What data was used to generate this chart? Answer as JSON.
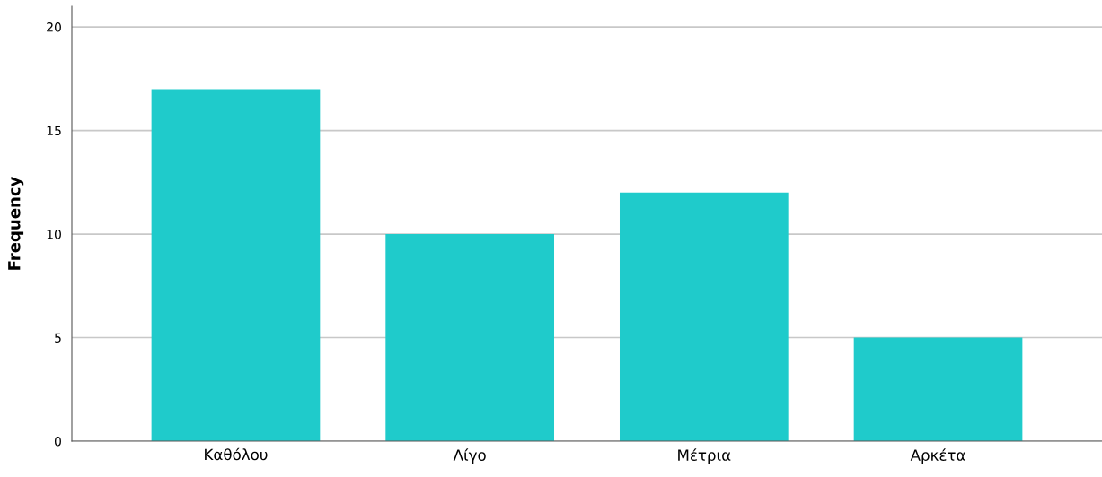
{
  "chart_data": {
    "type": "bar",
    "ylabel": "Frequency",
    "categories": [
      "Καθόλου",
      "Λίγο",
      "Μέτρια",
      "Αρκέτα"
    ],
    "values": [
      17,
      10,
      12,
      5
    ],
    "color": "#1fcbcb",
    "ylim": [
      0,
      21
    ],
    "yticks": [
      0,
      5,
      10,
      15,
      20
    ],
    "grid": "y"
  }
}
